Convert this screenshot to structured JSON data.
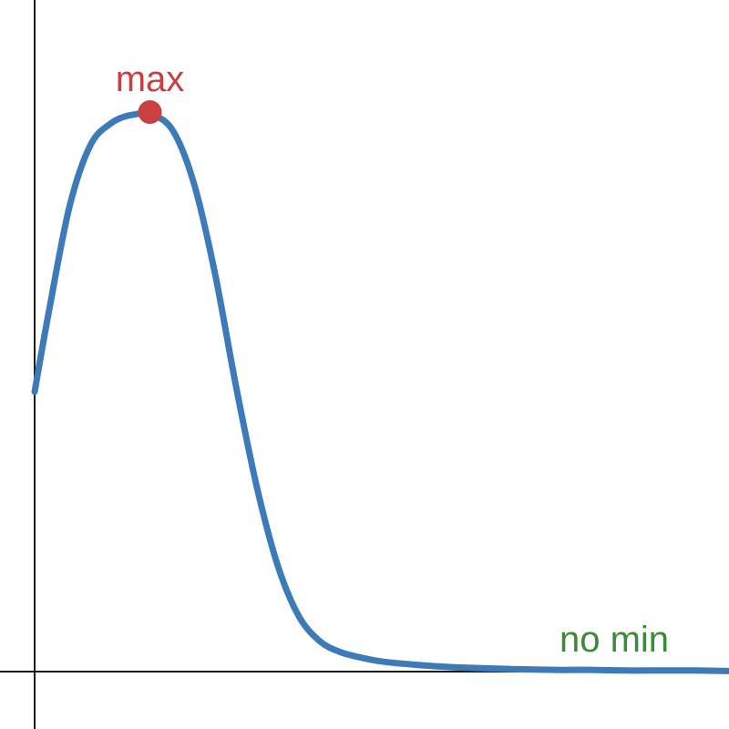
{
  "chart_data": {
    "type": "line",
    "title": "",
    "xlabel": "",
    "ylabel": "",
    "xlim": [
      0,
      1
    ],
    "ylim": [
      0,
      1
    ],
    "grid": false,
    "series": [
      {
        "color": "#3d7ab8",
        "x": [
          0,
          0.02,
          0.05,
          0.08,
          0.11,
          0.14,
          0.17,
          0.2,
          0.23,
          0.26,
          0.29,
          0.32,
          0.35,
          0.38,
          0.41,
          0.44,
          0.47,
          0.5,
          0.55,
          0.6,
          0.65,
          0.7,
          0.75,
          0.8,
          0.85,
          0.9,
          0.95,
          1.0
        ],
        "y": [
          0.5,
          0.64,
          0.83,
          0.94,
          0.98,
          0.995,
          0.995,
          0.965,
          0.87,
          0.71,
          0.51,
          0.33,
          0.19,
          0.1,
          0.055,
          0.035,
          0.025,
          0.018,
          0.012,
          0.008,
          0.006,
          0.004,
          0.003,
          0.003,
          0.002,
          0.002,
          0.002,
          0.001
        ]
      }
    ],
    "points": [
      {
        "label": "max",
        "x": 0.166,
        "y": 1.0,
        "color": "#c94040"
      }
    ],
    "annotations": [
      {
        "text": "no min",
        "color": "#3a8a3a"
      }
    ],
    "axis_color": "#1a1a1a"
  }
}
